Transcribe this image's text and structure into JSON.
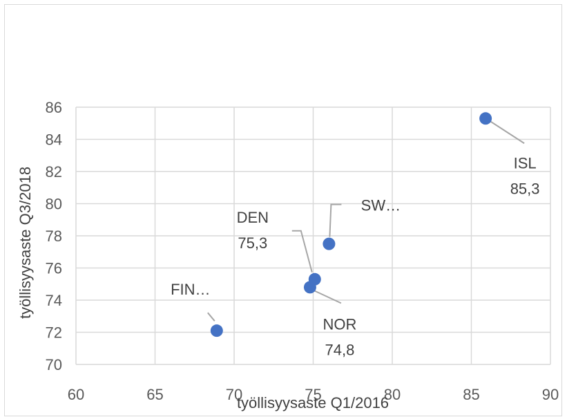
{
  "chart_data": {
    "type": "scatter",
    "xlabel": "työllisyysaste Q1/2016",
    "ylabel": "työllisyysaste Q3/2018",
    "xlim": [
      60,
      90
    ],
    "ylim": [
      70,
      86
    ],
    "x_ticks": [
      "60",
      "65",
      "70",
      "75",
      "80",
      "85",
      "90"
    ],
    "y_ticks": [
      "70",
      "72",
      "74",
      "76",
      "78",
      "80",
      "82",
      "84",
      "86"
    ],
    "grid": true,
    "marker_color": "#4472c4",
    "points": [
      {
        "x": 68.9,
        "y": 72.1,
        "label": "FIN…",
        "value_label": ""
      },
      {
        "x": 75.1,
        "y": 75.3,
        "label": "DEN",
        "value_label": "75,3"
      },
      {
        "x": 74.8,
        "y": 74.8,
        "label": "NOR",
        "value_label": "74,8"
      },
      {
        "x": 76.0,
        "y": 77.5,
        "label": "SW…",
        "value_label": ""
      },
      {
        "x": 85.9,
        "y": 85.3,
        "label": "ISL",
        "value_label": "85,3"
      }
    ]
  }
}
